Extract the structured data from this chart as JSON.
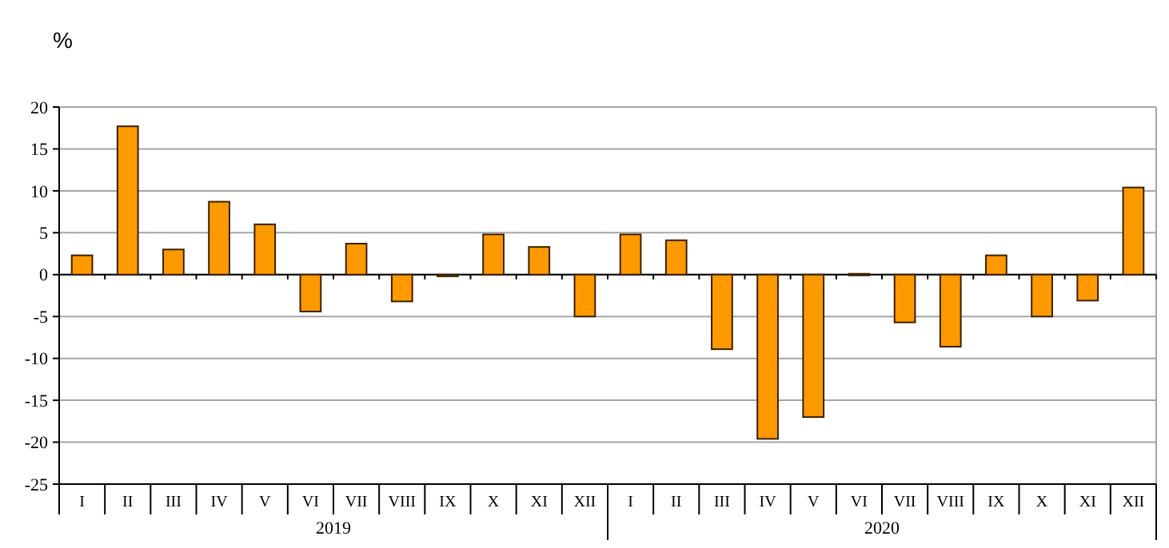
{
  "chart_data": {
    "type": "bar",
    "ylabel": "%",
    "categories": [
      "I",
      "II",
      "III",
      "IV",
      "V",
      "VI",
      "VII",
      "VIII",
      "IX",
      "X",
      "XI",
      "XII",
      "I",
      "II",
      "III",
      "IV",
      "V",
      "VI",
      "VII",
      "VIII",
      "IX",
      "X",
      "XI",
      "XII"
    ],
    "values": [
      2.3,
      17.7,
      3.0,
      8.7,
      6.0,
      -4.4,
      3.7,
      -3.2,
      -0.2,
      4.8,
      3.3,
      -5.0,
      4.8,
      4.1,
      -8.9,
      -19.6,
      -17.0,
      0.1,
      -5.7,
      -8.6,
      2.3,
      -5.0,
      -3.1,
      10.4
    ],
    "color": "#ff9900",
    "ylim": [
      -25,
      20
    ],
    "yticks": [
      -25,
      -20,
      -15,
      -10,
      -5,
      0,
      5,
      10,
      15,
      20
    ],
    "grid": "y",
    "annotations": [
      "2019",
      "2020"
    ]
  }
}
